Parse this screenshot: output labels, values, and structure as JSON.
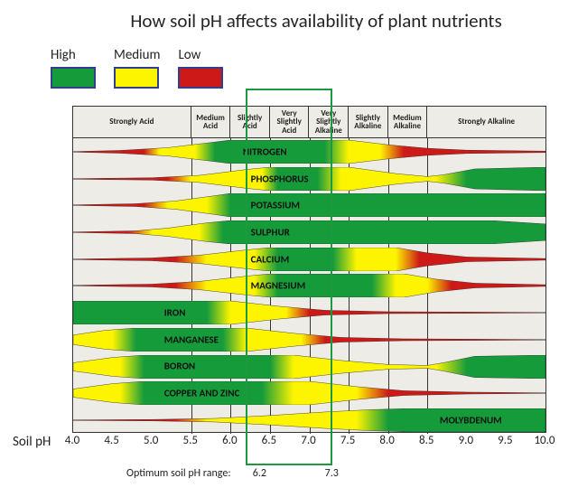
{
  "title": "How soil pH affects availability of plant nutrients",
  "legend": [
    {
      "label": "High",
      "color": "#169b3b"
    },
    {
      "label": "Medium",
      "color": "#fdf500"
    },
    {
      "label": "Low",
      "color": "#cd1a18"
    }
  ],
  "legend_border": "#30408a",
  "ph_range": {
    "min": 4.0,
    "max": 10.0
  },
  "chart_bg": "#edece6",
  "header": [
    {
      "label": "Strongly Acid",
      "from": 4.0,
      "to": 5.5
    },
    {
      "label": "Medium Acid",
      "from": 5.5,
      "to": 6.0
    },
    {
      "label": "Slightly Acid",
      "from": 6.0,
      "to": 6.5
    },
    {
      "label": "Very Slightly Acid",
      "from": 6.5,
      "to": 7.0
    },
    {
      "label": "Very Slightly Alkaline",
      "from": 7.0,
      "to": 7.5
    },
    {
      "label": "Slightly Alkaline",
      "from": 7.5,
      "to": 8.0
    },
    {
      "label": "Medium Alkaline",
      "from": 8.0,
      "to": 8.5
    },
    {
      "label": "Strongly Alkaline",
      "from": 8.5,
      "to": 10.0
    }
  ],
  "x_ticks": [
    4.0,
    4.5,
    5.0,
    5.5,
    6.0,
    6.5,
    7.0,
    7.5,
    8.0,
    8.5,
    9.0,
    9.5,
    10.0
  ],
  "vgrids": [
    5.5,
    6.0,
    6.5,
    7.0,
    7.5,
    8.0,
    8.5
  ],
  "x_axis_label": "Soil pH",
  "colors": {
    "high": "#169b3b",
    "medium": "#fdf500",
    "low": "#cd1a18"
  },
  "optimum": {
    "label": "Optimum soil pH range:",
    "lo": 6.2,
    "hi": 7.3
  },
  "band_chart": {
    "inner_width": 523,
    "row_height": 29.7,
    "band_height": 26
  },
  "nutrients": [
    {
      "name": "NITROGEN",
      "label_ph": 6.5,
      "shape": [
        [
          4.0,
          0.02
        ],
        [
          4.6,
          0.12
        ],
        [
          5.2,
          0.35
        ],
        [
          5.7,
          0.75
        ],
        [
          6.0,
          1.0
        ],
        [
          7.5,
          1.0
        ],
        [
          8.0,
          0.6
        ],
        [
          8.5,
          0.3
        ],
        [
          9.0,
          0.14
        ],
        [
          10.0,
          0.06
        ]
      ],
      "colors": [
        [
          4.0,
          "low"
        ],
        [
          4.9,
          "low"
        ],
        [
          5.1,
          "med"
        ],
        [
          5.55,
          "med"
        ],
        [
          5.8,
          "high"
        ],
        [
          7.2,
          "high"
        ],
        [
          7.5,
          "med"
        ],
        [
          7.9,
          "med"
        ],
        [
          8.2,
          "low"
        ],
        [
          10.0,
          "low"
        ]
      ]
    },
    {
      "name": "PHOSPHORUS",
      "label_ph": 6.6,
      "shape": [
        [
          4.0,
          0.02
        ],
        [
          5.0,
          0.1
        ],
        [
          5.6,
          0.3
        ],
        [
          6.2,
          0.8
        ],
        [
          6.5,
          1.0
        ],
        [
          7.5,
          1.0
        ],
        [
          8.1,
          0.45
        ],
        [
          8.5,
          0.2
        ],
        [
          8.7,
          0.35
        ],
        [
          9.1,
          0.85
        ],
        [
          10.0,
          1.0
        ]
      ],
      "colors": [
        [
          4.0,
          "low"
        ],
        [
          5.2,
          "low"
        ],
        [
          5.5,
          "med"
        ],
        [
          6.4,
          "med"
        ],
        [
          6.6,
          "high"
        ],
        [
          7.1,
          "high"
        ],
        [
          7.4,
          "med"
        ],
        [
          8.6,
          "med"
        ],
        [
          9.0,
          "high"
        ],
        [
          10.0,
          "high"
        ]
      ]
    },
    {
      "name": "POTASSIUM",
      "label_ph": 6.6,
      "shape": [
        [
          4.0,
          0.02
        ],
        [
          4.8,
          0.12
        ],
        [
          5.3,
          0.35
        ],
        [
          5.8,
          0.8
        ],
        [
          6.0,
          1.0
        ],
        [
          10.0,
          1.0
        ]
      ],
      "colors": [
        [
          4.0,
          "low"
        ],
        [
          4.9,
          "low"
        ],
        [
          5.2,
          "med"
        ],
        [
          5.7,
          "med"
        ],
        [
          6.0,
          "high"
        ],
        [
          10.0,
          "high"
        ]
      ]
    },
    {
      "name": "SULPHUR",
      "label_ph": 6.6,
      "shape": [
        [
          4.0,
          0.02
        ],
        [
          4.8,
          0.12
        ],
        [
          5.2,
          0.35
        ],
        [
          5.7,
          0.8
        ],
        [
          6.0,
          1.0
        ],
        [
          9.3,
          1.0
        ],
        [
          10.0,
          0.7
        ]
      ],
      "colors": [
        [
          4.0,
          "low"
        ],
        [
          4.7,
          "low"
        ],
        [
          5.0,
          "med"
        ],
        [
          5.6,
          "med"
        ],
        [
          5.9,
          "high"
        ],
        [
          10.0,
          "high"
        ]
      ]
    },
    {
      "name": "CALCIUM",
      "label_ph": 6.6,
      "shape": [
        [
          4.0,
          0.02
        ],
        [
          5.0,
          0.12
        ],
        [
          5.6,
          0.35
        ],
        [
          6.2,
          0.8
        ],
        [
          6.5,
          1.0
        ],
        [
          8.1,
          1.0
        ],
        [
          8.5,
          0.55
        ],
        [
          9.0,
          0.2
        ],
        [
          10.0,
          0.07
        ]
      ],
      "colors": [
        [
          4.0,
          "low"
        ],
        [
          5.3,
          "low"
        ],
        [
          5.7,
          "med"
        ],
        [
          6.3,
          "med"
        ],
        [
          6.6,
          "high"
        ],
        [
          7.3,
          "high"
        ],
        [
          7.6,
          "med"
        ],
        [
          8.1,
          "med"
        ],
        [
          8.4,
          "low"
        ],
        [
          10.0,
          "low"
        ]
      ]
    },
    {
      "name": "MAGNESIUM",
      "label_ph": 6.6,
      "shape": [
        [
          4.0,
          0.02
        ],
        [
          5.0,
          0.12
        ],
        [
          5.6,
          0.35
        ],
        [
          6.2,
          0.8
        ],
        [
          6.5,
          1.0
        ],
        [
          8.2,
          1.0
        ],
        [
          8.6,
          0.55
        ],
        [
          9.1,
          0.2
        ],
        [
          10.0,
          0.07
        ]
      ],
      "colors": [
        [
          4.0,
          "low"
        ],
        [
          5.3,
          "low"
        ],
        [
          5.7,
          "med"
        ],
        [
          6.3,
          "med"
        ],
        [
          6.6,
          "high"
        ],
        [
          7.8,
          "high"
        ],
        [
          8.1,
          "med"
        ],
        [
          8.5,
          "med"
        ],
        [
          8.8,
          "low"
        ],
        [
          10.0,
          "low"
        ]
      ]
    },
    {
      "name": "IRON",
      "label_ph": 5.5,
      "shape": [
        [
          4.0,
          1.0
        ],
        [
          6.0,
          1.0
        ],
        [
          6.6,
          0.55
        ],
        [
          7.2,
          0.2
        ],
        [
          8.0,
          0.08
        ],
        [
          10.0,
          0.02
        ]
      ],
      "colors": [
        [
          4.0,
          "high"
        ],
        [
          5.7,
          "high"
        ],
        [
          6.0,
          "med"
        ],
        [
          6.7,
          "med"
        ],
        [
          7.0,
          "low"
        ],
        [
          10.0,
          "low"
        ]
      ]
    },
    {
      "name": "MANGANESE",
      "label_ph": 5.5,
      "shape": [
        [
          4.0,
          0.4
        ],
        [
          4.4,
          0.8
        ],
        [
          4.8,
          1.0
        ],
        [
          6.2,
          1.0
        ],
        [
          6.8,
          0.55
        ],
        [
          7.4,
          0.2
        ],
        [
          8.2,
          0.08
        ],
        [
          10.0,
          0.02
        ]
      ],
      "colors": [
        [
          4.0,
          "med"
        ],
        [
          4.5,
          "med"
        ],
        [
          4.8,
          "high"
        ],
        [
          5.9,
          "high"
        ],
        [
          6.2,
          "med"
        ],
        [
          6.9,
          "med"
        ],
        [
          7.2,
          "low"
        ],
        [
          10.0,
          "low"
        ]
      ]
    },
    {
      "name": "BORON",
      "label_ph": 5.5,
      "shape": [
        [
          4.0,
          0.35
        ],
        [
          4.5,
          0.8
        ],
        [
          4.9,
          1.0
        ],
        [
          6.8,
          1.0
        ],
        [
          7.4,
          0.55
        ],
        [
          8.0,
          0.2
        ],
        [
          8.5,
          0.12
        ],
        [
          8.7,
          0.35
        ],
        [
          9.1,
          0.9
        ],
        [
          10.0,
          1.0
        ]
      ],
      "colors": [
        [
          4.0,
          "med"
        ],
        [
          4.6,
          "med"
        ],
        [
          4.9,
          "high"
        ],
        [
          6.5,
          "high"
        ],
        [
          6.8,
          "med"
        ],
        [
          8.6,
          "med"
        ],
        [
          9.0,
          "high"
        ],
        [
          10.0,
          "high"
        ]
      ]
    },
    {
      "name": "COPPER AND ZINC",
      "label_ph": 5.5,
      "shape": [
        [
          4.0,
          0.35
        ],
        [
          4.5,
          0.8
        ],
        [
          4.9,
          1.0
        ],
        [
          7.0,
          1.0
        ],
        [
          7.6,
          0.55
        ],
        [
          8.2,
          0.2
        ],
        [
          9.0,
          0.08
        ],
        [
          10.0,
          0.02
        ]
      ],
      "colors": [
        [
          4.0,
          "med"
        ],
        [
          4.6,
          "med"
        ],
        [
          4.9,
          "high"
        ],
        [
          6.4,
          "high"
        ],
        [
          6.8,
          "med"
        ],
        [
          7.6,
          "med"
        ],
        [
          8.0,
          "low"
        ],
        [
          10.0,
          "low"
        ]
      ]
    },
    {
      "name": "MOLYBDENUM",
      "label_ph": 9.0,
      "shape": [
        [
          4.0,
          0.02
        ],
        [
          5.0,
          0.06
        ],
        [
          5.8,
          0.15
        ],
        [
          6.5,
          0.4
        ],
        [
          7.2,
          0.7
        ],
        [
          7.8,
          0.9
        ],
        [
          8.3,
          1.0
        ],
        [
          10.0,
          1.0
        ]
      ],
      "colors": [
        [
          4.0,
          "low"
        ],
        [
          5.3,
          "low"
        ],
        [
          5.7,
          "med"
        ],
        [
          7.6,
          "med"
        ],
        [
          8.0,
          "high"
        ],
        [
          10.0,
          "high"
        ]
      ]
    }
  ]
}
